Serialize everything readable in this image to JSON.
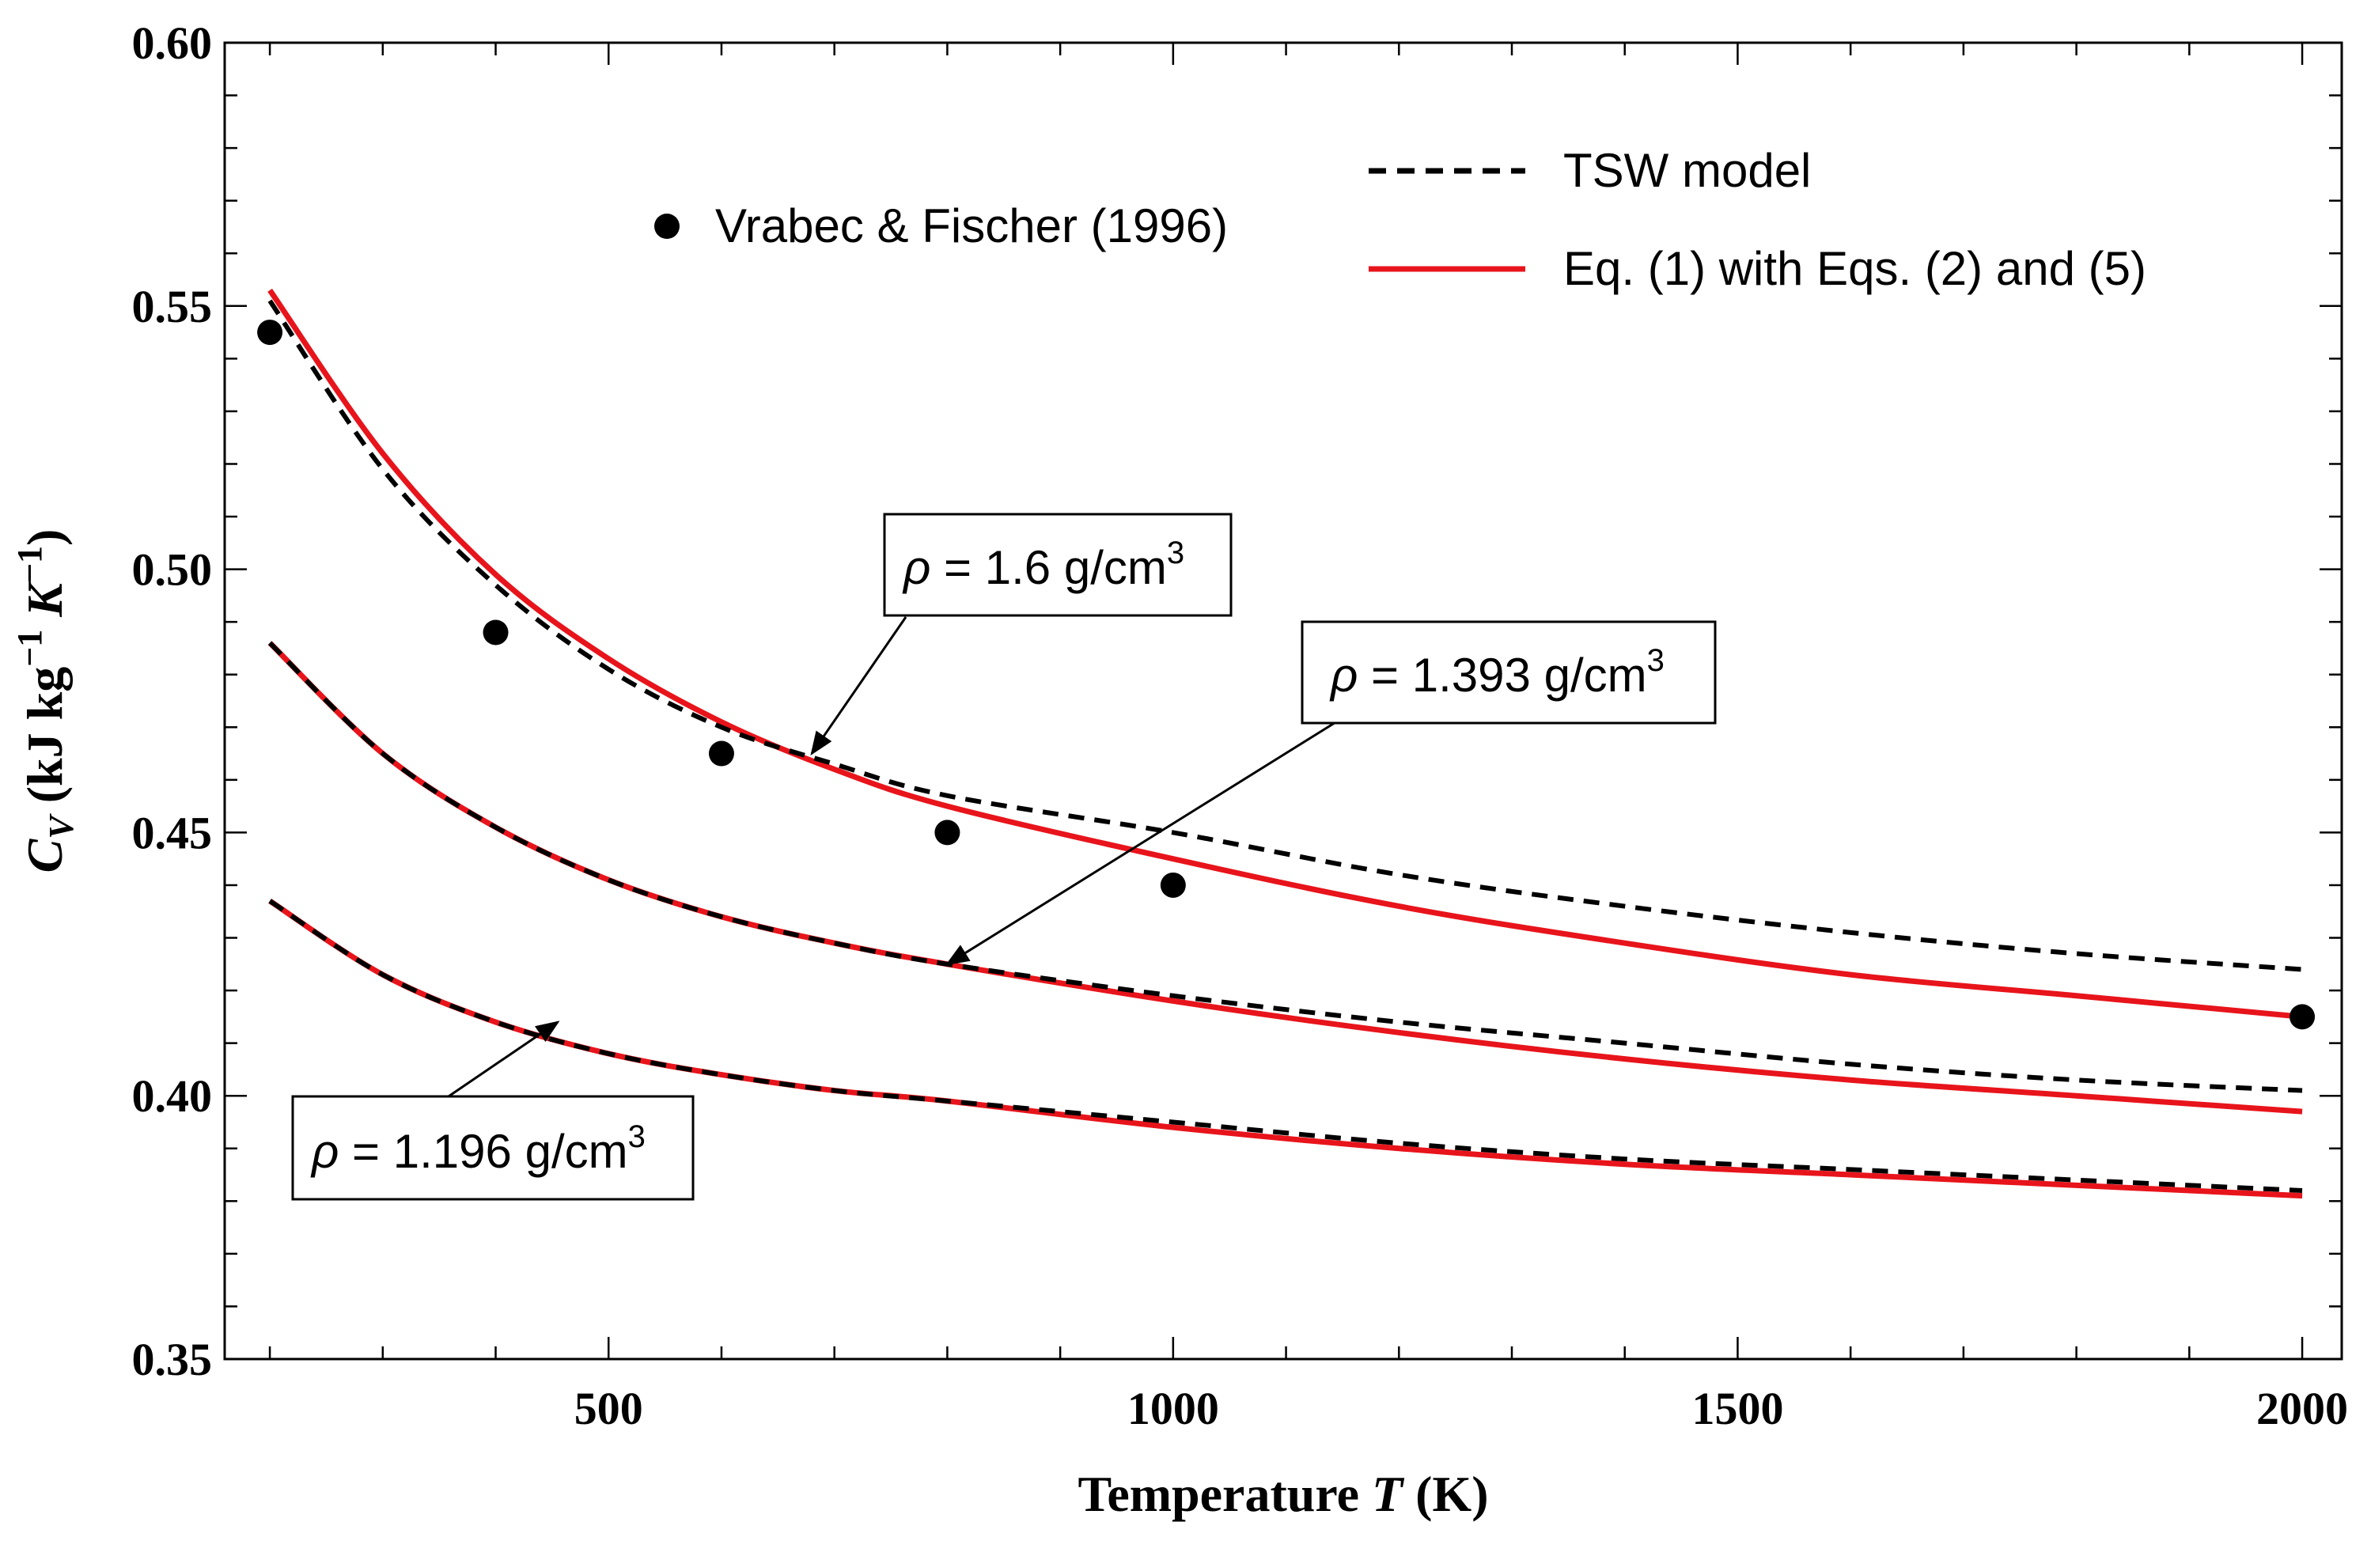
{
  "chart_data": {
    "type": "line",
    "title": "",
    "xlabel": {
      "prefix": "Temperature ",
      "var": "T",
      "suffix": " (K)"
    },
    "ylabel": {
      "var": "C",
      "sub": "V",
      "main": " (kJ kg",
      "exp1": "−1",
      "k": " K",
      "exp2": "−1",
      "close": ")"
    },
    "xlim": [
      160,
      2035
    ],
    "ylim": [
      0.35,
      0.6
    ],
    "x_ticks": [
      500,
      1000,
      1500,
      2000
    ],
    "y_ticks": [
      0.35,
      0.4,
      0.45,
      0.5,
      0.55,
      0.6
    ],
    "y_tick_labels": [
      "0.35",
      "0.40",
      "0.45",
      "0.50",
      "0.55",
      "0.60"
    ],
    "x_tick_labels": [
      "500",
      "1000",
      "1500",
      "2000"
    ],
    "x": [
      200,
      300,
      400,
      500,
      600,
      700,
      800,
      1000,
      1200,
      1400,
      1600,
      1800,
      2000
    ],
    "series": [
      {
        "name": "TSW model",
        "style": "dashed",
        "color": "#000000",
        "group": "rho=1.6",
        "values": [
          0.551,
          0.519,
          0.497,
          0.481,
          0.47,
          0.463,
          0.457,
          0.45,
          0.442,
          0.436,
          0.431,
          0.427,
          0.424
        ]
      },
      {
        "name": "Eq. (1) with Eqs. (2) and (5)",
        "style": "solid",
        "color": "#e8141b",
        "group": "rho=1.6",
        "values": [
          0.553,
          0.522,
          0.499,
          0.483,
          0.471,
          0.462,
          0.455,
          0.445,
          0.436,
          0.429,
          0.423,
          0.419,
          0.415
        ]
      },
      {
        "name": "TSW model",
        "style": "dashed",
        "color": "#000000",
        "group": "rho=1.393",
        "values": [
          0.486,
          0.465,
          0.451,
          0.441,
          0.434,
          0.429,
          0.425,
          0.419,
          0.414,
          0.41,
          0.406,
          0.403,
          0.401
        ]
      },
      {
        "name": "Eq. (1) with Eqs. (2) and (5)",
        "style": "solid",
        "color": "#e8141b",
        "group": "rho=1.393",
        "values": [
          0.486,
          0.465,
          0.451,
          0.441,
          0.434,
          0.429,
          0.425,
          0.418,
          0.412,
          0.407,
          0.403,
          0.4,
          0.397
        ]
      },
      {
        "name": "TSW model",
        "style": "dashed",
        "color": "#000000",
        "group": "rho=1.196",
        "values": [
          0.437,
          0.423,
          0.414,
          0.408,
          0.404,
          0.401,
          0.399,
          0.395,
          0.391,
          0.388,
          0.386,
          0.384,
          0.382
        ]
      },
      {
        "name": "Eq. (1) with Eqs. (2) and (5)",
        "style": "solid",
        "color": "#e8141b",
        "group": "rho=1.196",
        "values": [
          0.437,
          0.423,
          0.414,
          0.408,
          0.404,
          0.401,
          0.399,
          0.394,
          0.39,
          0.387,
          0.385,
          0.383,
          0.381
        ]
      }
    ],
    "points": {
      "name": "Vrabec & Fischer (1996)",
      "x": [
        200,
        400,
        600,
        800,
        1000,
        2000
      ],
      "y": [
        0.545,
        0.488,
        0.465,
        0.45,
        0.44,
        0.415
      ]
    },
    "legend": {
      "points_label": "Vrabec & Fischer (1996)",
      "dashed_label": "TSW model",
      "solid_label": "Eq. (1) with Eqs. (2) and (5)"
    },
    "annotations": [
      {
        "id": "a1",
        "rho": "ρ",
        "text": " = 1.6 g/cm",
        "sup": "3",
        "arrow_to": [
          680,
          0.465
        ]
      },
      {
        "id": "a2",
        "rho": "ρ",
        "text": " = 1.393 g/cm",
        "sup": "3",
        "arrow_to": [
          800,
          0.425
        ]
      },
      {
        "id": "a3",
        "rho": "ρ",
        "text": " = 1.196 g/cm",
        "sup": "3",
        "arrow_to": [
          455,
          0.414
        ]
      }
    ],
    "colors": {
      "red": "#e8141b",
      "black": "#000000"
    }
  }
}
